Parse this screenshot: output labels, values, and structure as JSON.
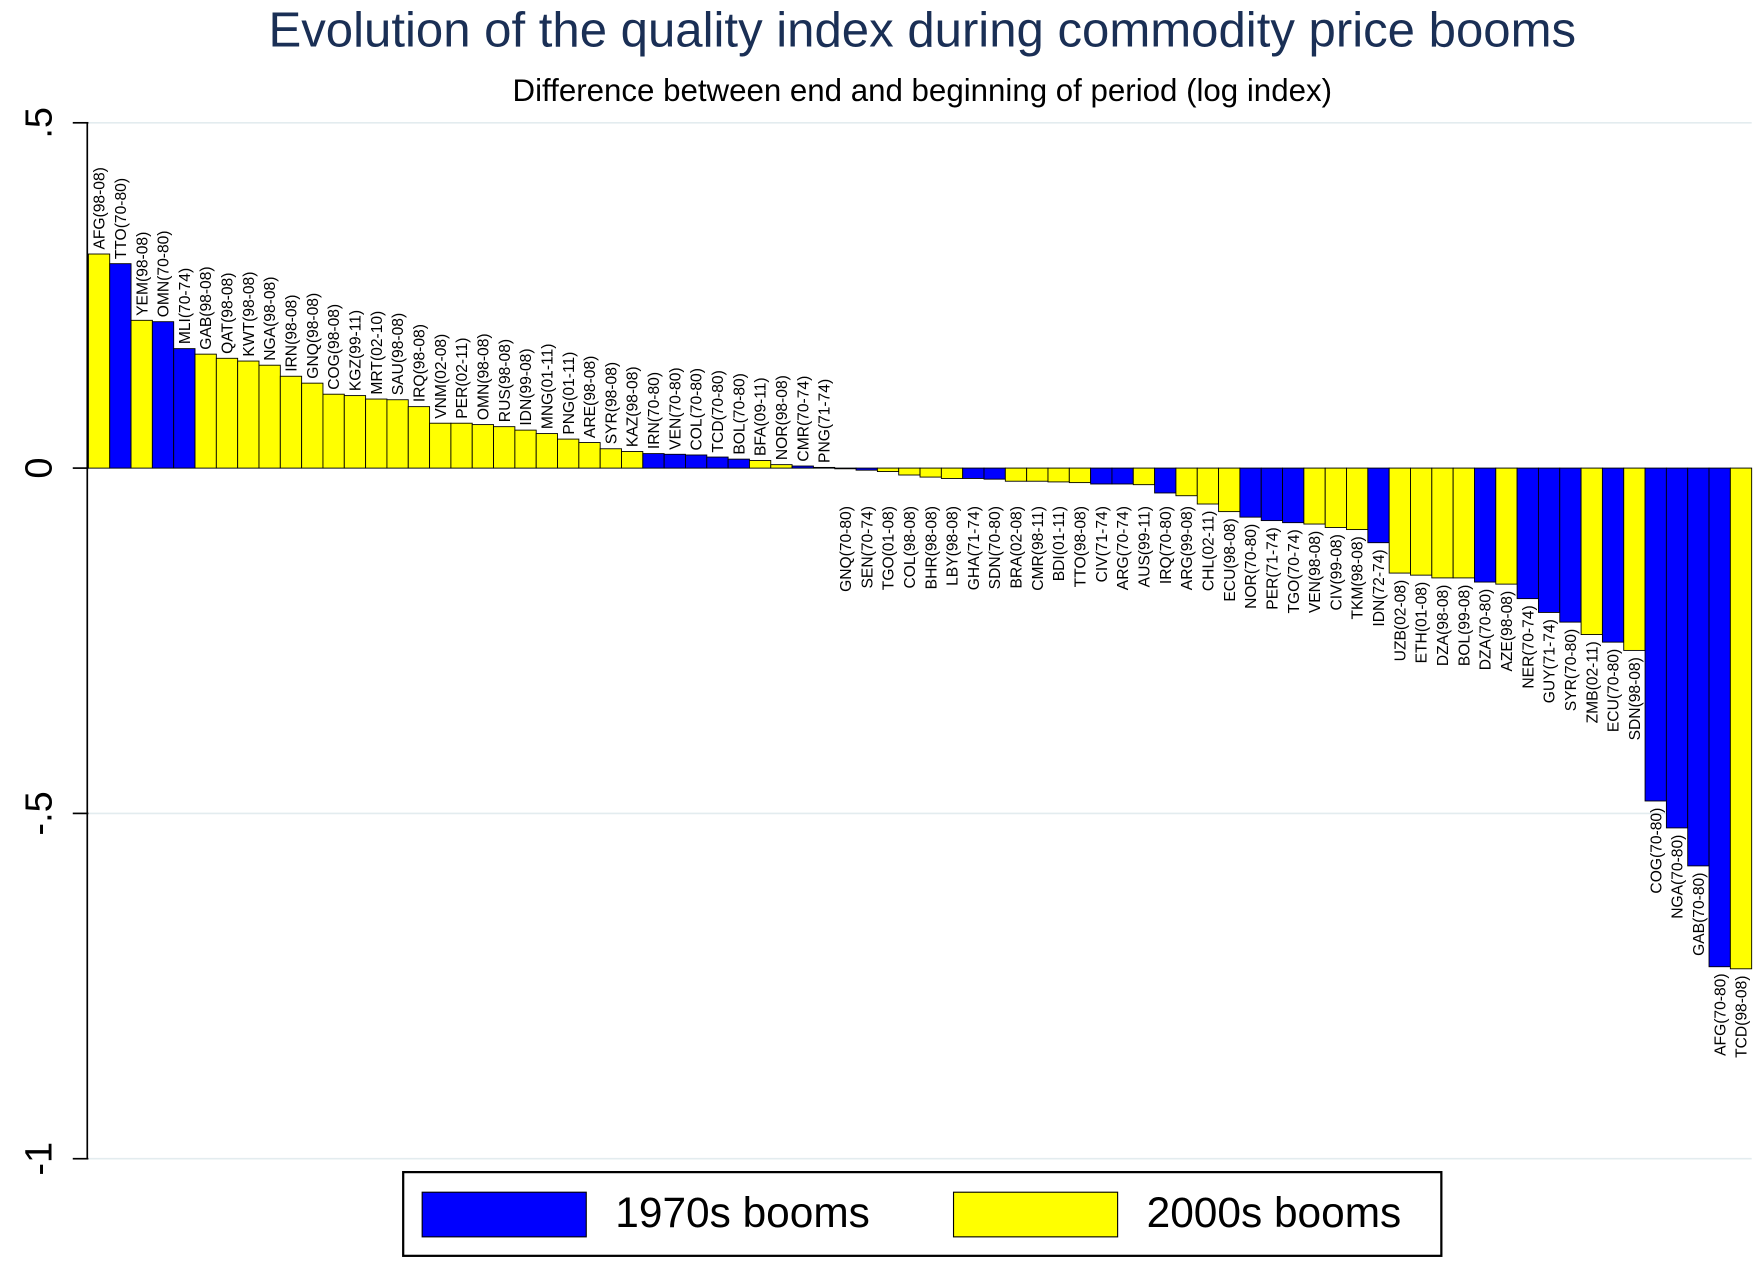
{
  "chart_data": {
    "type": "bar",
    "title": "Evolution of the quality index during commodity price booms",
    "subtitle": "Difference between end and beginning of period (log index)",
    "categories": [
      "AFG(98-08)",
      "TTO(70-80)",
      "YEM(98-08)",
      "OMN(70-80)",
      "MLI(70-74)",
      "GAB(98-08)",
      "QAT(98-08)",
      "KWT(98-08)",
      "NGA(98-08)",
      "IRN(98-08)",
      "GNQ(98-08)",
      "COG(98-08)",
      "KGZ(99-11)",
      "MRT(02-10)",
      "SAU(98-08)",
      "IRQ(98-08)",
      "VNM(02-08)",
      "PER(02-11)",
      "OMN(98-08)",
      "RUS(98-08)",
      "IDN(99-08)",
      "MNG(01-11)",
      "PNG(01-11)",
      "ARE(98-08)",
      "SYR(98-08)",
      "KAZ(98-08)",
      "IRN(70-80)",
      "VEN(70-80)",
      "COL(70-80)",
      "TCD(70-80)",
      "BOL(70-80)",
      "BFA(09-11)",
      "NOR(98-08)",
      "CMR(70-74)",
      "PNG(71-74)",
      "GNQ(70-80)",
      "SEN(70-74)",
      "TGO(01-08)",
      "COL(98-08)",
      "BHR(98-08)",
      "LBY(98-08)",
      "GHA(71-74)",
      "SDN(70-80)",
      "BRA(02-08)",
      "CMR(98-11)",
      "BDI(01-11)",
      "TTO(98-08)",
      "CIV(71-74)",
      "ARG(70-74)",
      "AUS(99-11)",
      "IRQ(70-80)",
      "ARG(99-08)",
      "CHL(02-11)",
      "ECU(98-08)",
      "NOR(70-80)",
      "PER(71-74)",
      "TGO(70-74)",
      "VEN(98-08)",
      "CIV(99-08)",
      "TKM(98-08)",
      "IDN(72-74)",
      "UZB(02-08)",
      "ETH(01-08)",
      "DZA(98-08)",
      "BOL(99-08)",
      "DZA(70-80)",
      "AZE(98-08)",
      "NER(70-74)",
      "GUY(71-74)",
      "SYR(70-80)",
      "ZMB(02-11)",
      "ECU(70-80)",
      "SDN(98-08)",
      "COG(70-80)",
      "NGA(70-80)",
      "GAB(70-80)",
      "AFG(70-80)",
      "TCD(98-08)"
    ],
    "series": [
      {
        "name": "1970s booms",
        "color": "#0000ff",
        "values": [
          null,
          0.296,
          null,
          0.212,
          0.173,
          null,
          null,
          null,
          null,
          null,
          null,
          null,
          null,
          null,
          null,
          null,
          null,
          null,
          null,
          null,
          null,
          null,
          null,
          null,
          null,
          null,
          0.021,
          0.02,
          0.019,
          0.016,
          0.013,
          null,
          null,
          0.003,
          0.001,
          -0.001,
          -0.003,
          null,
          null,
          null,
          null,
          -0.015,
          -0.016,
          null,
          null,
          null,
          null,
          -0.023,
          -0.023,
          null,
          -0.036,
          null,
          null,
          null,
          -0.071,
          -0.076,
          -0.079,
          null,
          null,
          null,
          -0.108,
          null,
          null,
          null,
          null,
          -0.165,
          null,
          -0.189,
          -0.209,
          -0.223,
          null,
          -0.252,
          null,
          -0.482,
          -0.521,
          -0.576,
          -0.722,
          null
        ]
      },
      {
        "name": "2000s booms",
        "color": "#ffff00",
        "values": [
          0.31,
          null,
          0.214,
          null,
          null,
          0.165,
          0.159,
          0.155,
          0.149,
          0.133,
          0.123,
          0.107,
          0.105,
          0.1,
          0.099,
          0.089,
          0.065,
          0.065,
          0.063,
          0.06,
          0.055,
          0.05,
          0.042,
          0.037,
          0.028,
          0.024,
          null,
          null,
          null,
          null,
          null,
          0.011,
          0.005,
          null,
          null,
          null,
          null,
          -0.005,
          -0.01,
          -0.013,
          -0.015,
          null,
          null,
          -0.019,
          -0.019,
          -0.02,
          -0.021,
          null,
          null,
          -0.024,
          null,
          -0.04,
          -0.052,
          -0.063,
          null,
          null,
          null,
          -0.081,
          -0.086,
          -0.089,
          null,
          -0.152,
          -0.155,
          -0.159,
          -0.159,
          null,
          -0.168,
          null,
          null,
          null,
          -0.241,
          null,
          -0.264,
          null,
          null,
          null,
          null,
          -0.725
        ]
      }
    ],
    "ylim": [
      -1,
      0.5
    ],
    "yticks": [
      {
        "value": 0.5,
        "label": ".5"
      },
      0,
      {
        "value": -0.5,
        "label": "-.5"
      },
      -1
    ],
    "grid": true,
    "legend": "bottom"
  }
}
